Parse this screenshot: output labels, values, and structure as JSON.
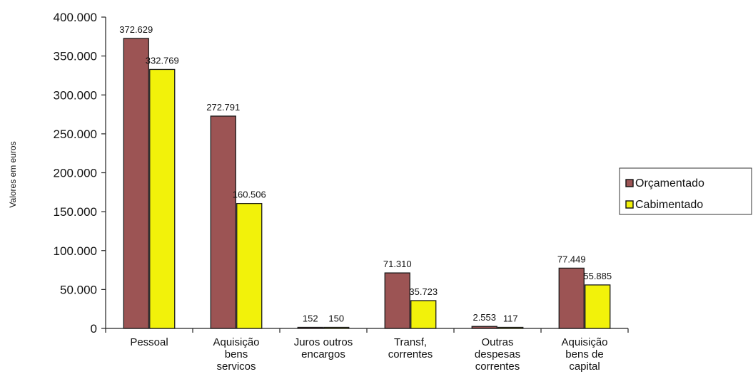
{
  "chart_data": {
    "type": "bar",
    "title": "",
    "xlabel": "",
    "ylabel": "Valores em euros",
    "ylim": [
      0,
      400000
    ],
    "yticks": [
      0,
      50000,
      100000,
      150000,
      200000,
      250000,
      300000,
      350000,
      400000
    ],
    "ytick_labels": [
      "0",
      "50.000",
      "100.000",
      "150.000",
      "200.000",
      "250.000",
      "300.000",
      "350.000",
      "400.000"
    ],
    "grid": false,
    "legend_position": "right",
    "categories": [
      [
        "Pessoal"
      ],
      [
        "Aquisição",
        "bens",
        "servicos"
      ],
      [
        "Juros outros",
        "encargos"
      ],
      [
        "Transf,",
        "correntes"
      ],
      [
        "Outras",
        "despesas",
        "correntes"
      ],
      [
        "Aquisição",
        "bens de",
        "capital"
      ]
    ],
    "series": [
      {
        "name": "Orçamentado",
        "color": "#9c5454",
        "values": [
          372629,
          272791,
          152,
          71310,
          2553,
          77449
        ],
        "labels": [
          "372.629",
          "272.791",
          "152",
          "71.310",
          "2.553",
          "77.449"
        ]
      },
      {
        "name": "Cabimentado",
        "color": "#f2f20a",
        "values": [
          332769,
          160506,
          150,
          35723,
          117,
          55885
        ],
        "labels": [
          "332.769",
          "160.506",
          "150",
          "35.723",
          "117",
          "55.885"
        ]
      }
    ]
  }
}
